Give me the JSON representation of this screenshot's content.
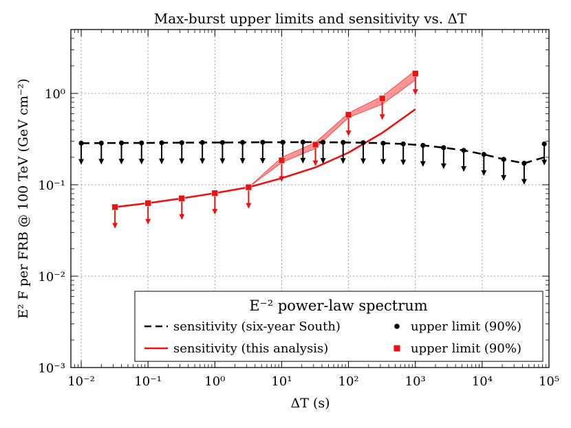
{
  "chart_data": {
    "type": "line",
    "title": "Max-burst upper limits and sensitivity vs. ΔT",
    "xlabel": "ΔT (s)",
    "ylabel": "E² F per FRB @ 100 TeV (GeV cm⁻²)",
    "xscale": "log",
    "yscale": "log",
    "xlim": [
      0.007,
      100000
    ],
    "ylim": [
      0.001,
      5
    ],
    "grid": true,
    "x_ticks": [
      {
        "value": 0.01,
        "label": "10⁻²"
      },
      {
        "value": 0.1,
        "label": "10⁻¹"
      },
      {
        "value": 1,
        "label": "10⁰"
      },
      {
        "value": 10,
        "label": "10¹"
      },
      {
        "value": 100,
        "label": "10²"
      },
      {
        "value": 1000,
        "label": "10³"
      },
      {
        "value": 10000,
        "label": "10⁴"
      },
      {
        "value": 100000,
        "label": "10⁵"
      }
    ],
    "y_ticks": [
      {
        "value": 0.001,
        "label": "10⁻³"
      },
      {
        "value": 0.01,
        "label": "10⁻²"
      },
      {
        "value": 0.1,
        "label": "10⁻¹"
      },
      {
        "value": 1,
        "label": "10⁰"
      }
    ],
    "series": [
      {
        "name": "sensitivity (six-year South)",
        "style": "dashed",
        "color": "#000000",
        "x": [
          0.01,
          0.02,
          0.04,
          0.08,
          0.16,
          0.32,
          0.65,
          1.3,
          2.6,
          5.2,
          10.4,
          20.8,
          41.6,
          83,
          166,
          330,
          660,
          1300,
          2650,
          5300,
          10600,
          21000,
          42500,
          85000
        ],
        "y": [
          0.285,
          0.286,
          0.287,
          0.287,
          0.288,
          0.289,
          0.29,
          0.29,
          0.291,
          0.292,
          0.292,
          0.293,
          0.292,
          0.291,
          0.289,
          0.285,
          0.28,
          0.27,
          0.255,
          0.238,
          0.215,
          0.19,
          0.172,
          0.2
        ]
      },
      {
        "name": "upper limit (90%)",
        "style": "markers",
        "marker": "circle",
        "color": "#000000",
        "x": [
          0.01,
          0.02,
          0.04,
          0.08,
          0.16,
          0.32,
          0.65,
          1.3,
          2.6,
          5.2,
          10.4,
          20.8,
          41.6,
          83,
          166,
          330,
          660,
          1300,
          2650,
          5300,
          10600,
          21000,
          42500,
          85000
        ],
        "y": [
          0.285,
          0.286,
          0.287,
          0.287,
          0.288,
          0.289,
          0.29,
          0.29,
          0.291,
          0.292,
          0.292,
          0.293,
          0.292,
          0.291,
          0.289,
          0.285,
          0.28,
          0.27,
          0.255,
          0.238,
          0.215,
          0.19,
          0.172,
          0.28
        ]
      },
      {
        "name": "sensitivity (this analysis)",
        "style": "solid",
        "color": "#ee1111",
        "x": [
          0.032,
          0.1,
          0.32,
          1,
          3.2,
          10,
          32,
          100,
          320,
          1000
        ],
        "y": [
          0.057,
          0.063,
          0.071,
          0.081,
          0.094,
          0.118,
          0.155,
          0.225,
          0.37,
          0.67
        ]
      },
      {
        "name": "upper limit (90%)",
        "style": "markers",
        "marker": "square",
        "color": "#ee1111",
        "x": [
          0.032,
          0.1,
          0.32,
          1,
          3.2,
          10,
          32,
          100,
          320,
          1000
        ],
        "y": [
          0.057,
          0.063,
          0.071,
          0.081,
          0.094,
          0.185,
          0.275,
          0.585,
          0.88,
          1.65
        ]
      }
    ],
    "band": {
      "name": "upper limit range",
      "color": "#ff6666",
      "x": [
        3.2,
        10,
        32,
        100,
        320,
        1000
      ],
      "upper": [
        0.094,
        0.2,
        0.29,
        0.61,
        0.93,
        1.78
      ],
      "lower": [
        0.094,
        0.175,
        0.25,
        0.545,
        0.76,
        1.4
      ]
    },
    "legend": {
      "title": "E⁻² power-law spectrum",
      "position": "lower-right",
      "entries": [
        {
          "label": "sensitivity (six-year South)",
          "kind": "dashed",
          "color": "#000000"
        },
        {
          "label": "upper limit (90%)",
          "kind": "circle",
          "color": "#000000"
        },
        {
          "label": "sensitivity (this analysis)",
          "kind": "solid",
          "color": "#ee1111"
        },
        {
          "label": "upper limit (90%)",
          "kind": "square",
          "color": "#ee1111"
        }
      ]
    }
  }
}
